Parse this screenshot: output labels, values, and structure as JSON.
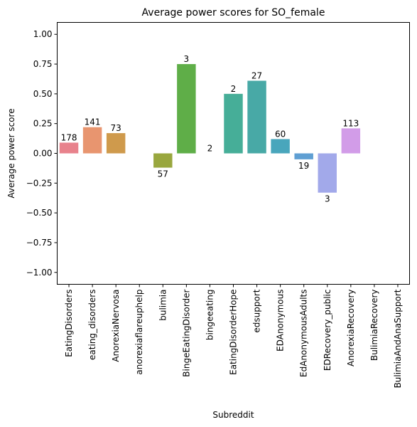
{
  "chart_data": {
    "type": "bar",
    "title": "Average power scores for SO_female",
    "xlabel": "Subreddit",
    "ylabel": "Average power score",
    "ylim": [
      -1.1,
      1.1
    ],
    "yticks": [
      -1.0,
      -0.75,
      -0.5,
      -0.25,
      0.0,
      0.25,
      0.5,
      0.75,
      1.0
    ],
    "ytick_labels": [
      "−1.00",
      "−0.75",
      "−0.50",
      "−0.25",
      "0.00",
      "0.25",
      "0.50",
      "0.75",
      "1.00"
    ],
    "grid": false,
    "categories": [
      "EatingDisorders",
      "eating_disorders",
      "AnorexiaNervosa",
      "anorexiaflareuphelp",
      "bulimia",
      "BingeEatingDisorder",
      "bingeeating",
      "EatingDisorderHope",
      "edsupport",
      "EDAnonymous",
      "EdAnonymousAdults",
      "EDRecovery_public",
      "AnorexiaRecovery",
      "BulimiaRecovery",
      "BulimiaAndAnaSupport"
    ],
    "values": [
      0.09,
      0.22,
      0.17,
      null,
      -0.12,
      0.75,
      0.0,
      0.5,
      0.61,
      0.12,
      -0.05,
      -0.33,
      0.21,
      null,
      null
    ],
    "data_labels": [
      "178",
      "141",
      "73",
      "",
      "57",
      "3",
      "2",
      "2",
      "27",
      "60",
      "19",
      "3",
      "113",
      "",
      ""
    ],
    "colors": [
      "#e8828c",
      "#e8956f",
      "#cf9a4c",
      "#b0a141",
      "#99a73e",
      "#5fae48",
      "#4cae7c",
      "#46ae98",
      "#48a9a6",
      "#49a6bc",
      "#5f9fd3",
      "#a2a9ea",
      "#d29ce8",
      "#e592d2",
      "#e88cb4"
    ]
  }
}
